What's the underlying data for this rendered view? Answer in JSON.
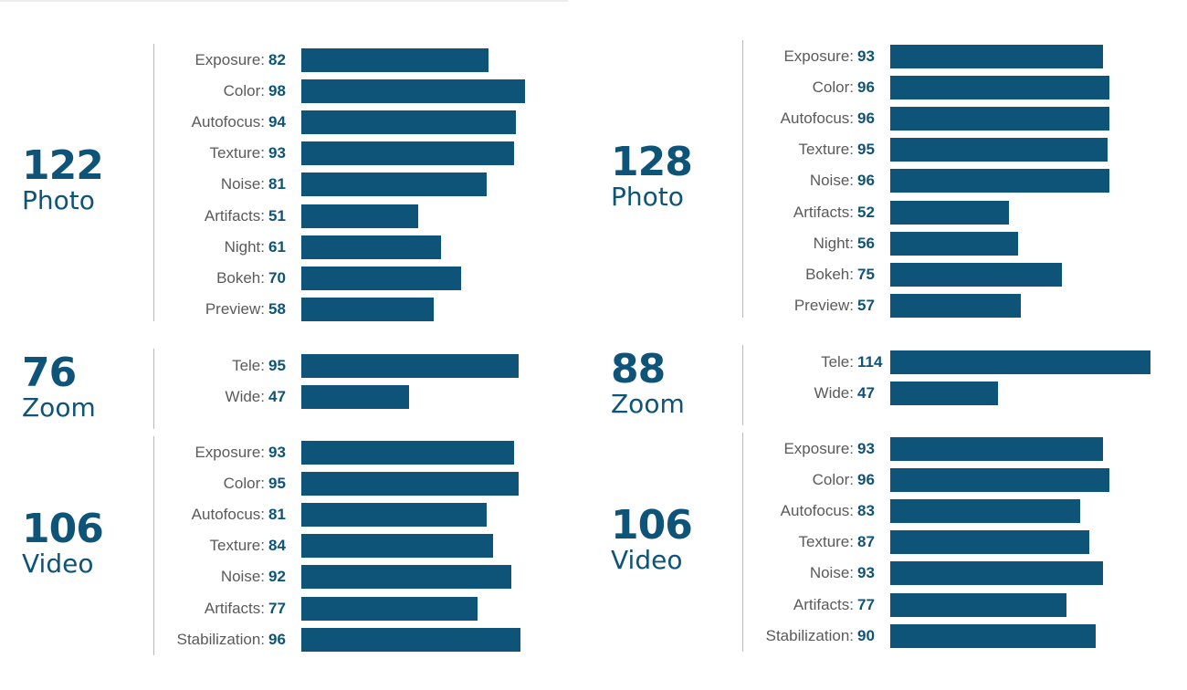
{
  "chart_data": [
    {
      "type": "bar",
      "orientation": "horizontal",
      "panel": "left",
      "groups": [
        {
          "score": "122",
          "category": "Photo",
          "categories": [
            "Exposure:",
            "Color:",
            "Autofocus:",
            "Texture:",
            "Noise:",
            "Artifacts:",
            "Night:",
            "Bokeh:",
            "Preview:"
          ],
          "values": [
            82,
            98,
            94,
            93,
            81,
            51,
            61,
            70,
            58
          ]
        },
        {
          "score": "76",
          "category": "Zoom",
          "categories": [
            "Tele:",
            "Wide:"
          ],
          "values": [
            95,
            47
          ]
        },
        {
          "score": "106",
          "category": "Video",
          "categories": [
            "Exposure:",
            "Color:",
            "Autofocus:",
            "Texture:",
            "Noise:",
            "Artifacts:",
            "Stabilization:"
          ],
          "values": [
            93,
            95,
            81,
            84,
            92,
            77,
            96
          ]
        }
      ]
    },
    {
      "type": "bar",
      "orientation": "horizontal",
      "panel": "right",
      "groups": [
        {
          "score": "128",
          "category": "Photo",
          "categories": [
            "Exposure:",
            "Color:",
            "Autofocus:",
            "Texture:",
            "Noise:",
            "Artifacts:",
            "Night:",
            "Bokeh:",
            "Preview:"
          ],
          "values": [
            93,
            96,
            96,
            95,
            96,
            52,
            56,
            75,
            57
          ]
        },
        {
          "score": "88",
          "category": "Zoom",
          "categories": [
            "Tele:",
            "Wide:"
          ],
          "values": [
            114,
            47
          ]
        },
        {
          "score": "106",
          "category": "Video",
          "categories": [
            "Exposure:",
            "Color:",
            "Autofocus:",
            "Texture:",
            "Noise:",
            "Artifacts:",
            "Stabilization:"
          ],
          "values": [
            93,
            96,
            83,
            87,
            93,
            77,
            90
          ]
        }
      ]
    }
  ],
  "colors": {
    "bar": "#0e5478",
    "label": "#5a5a5a",
    "score": "#0e5478",
    "divider": "#b9b9b9"
  }
}
